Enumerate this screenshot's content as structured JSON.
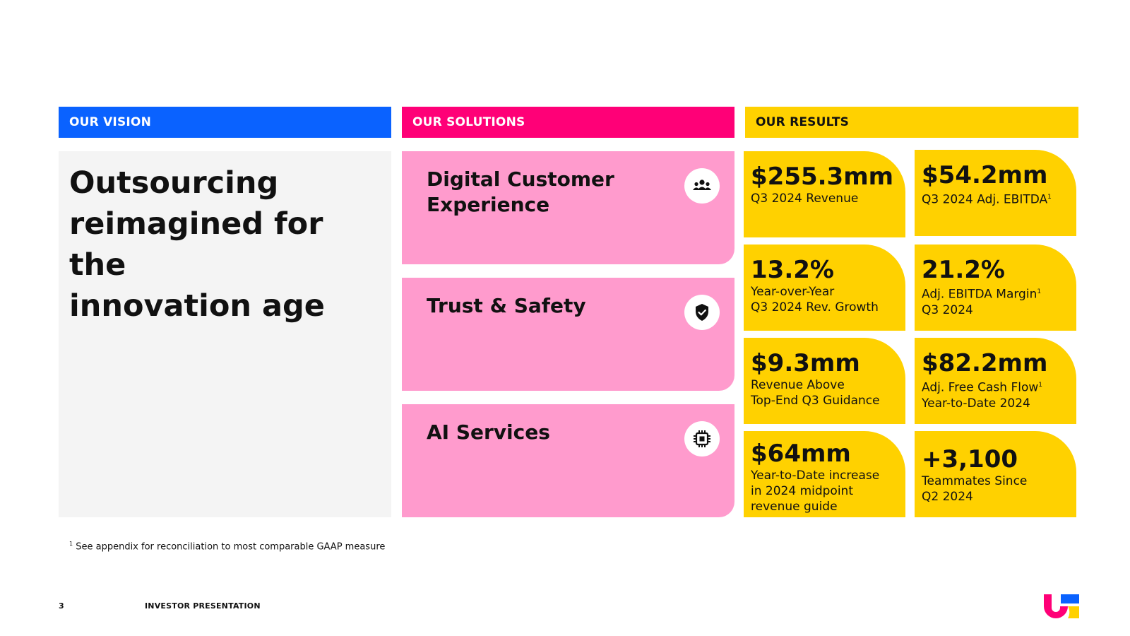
{
  "colors": {
    "blue": "#0a62ff",
    "magenta": "#ff0077",
    "pink": "#ff9bcd",
    "yellow": "#ffd100",
    "panel_gray": "#f4f4f4"
  },
  "vision": {
    "header": "OUR VISION",
    "lines": [
      "Outsourcing",
      "reimagined for the",
      "innovation age"
    ]
  },
  "solutions": {
    "header": "OUR SOLUTIONS",
    "items": [
      {
        "title_lines": [
          "Digital Customer",
          "Experience"
        ],
        "icon": "people-group-icon"
      },
      {
        "title_lines": [
          "Trust & Safety"
        ],
        "icon": "shield-check-icon"
      },
      {
        "title_lines": [
          "AI Services"
        ],
        "icon": "chip-icon"
      }
    ]
  },
  "results": {
    "header": "OUR RESULTS",
    "tiles": [
      {
        "value": "$255.3mm",
        "label_lines": [
          "Q3 2024 Revenue"
        ]
      },
      {
        "value": "$54.2mm",
        "label_lines": [
          "Q3 2024 Adj. EBITDA"
        ],
        "sup": "1"
      },
      {
        "value": "13.2%",
        "label_lines": [
          "Year-over-Year",
          "Q3 2024 Rev. Growth"
        ]
      },
      {
        "value": "21.2%",
        "label_lines": [
          "Adj. EBITDA Margin",
          "Q3 2024"
        ],
        "sup": "1"
      },
      {
        "value": "$9.3mm",
        "label_lines": [
          "Revenue Above",
          "Top-End Q3 Guidance"
        ]
      },
      {
        "value": "$82.2mm",
        "label_lines": [
          "Adj. Free Cash Flow",
          "Year-to-Date 2024"
        ],
        "sup": "1"
      },
      {
        "value": "$64mm",
        "label_lines": [
          "Year-to-Date increase",
          "in 2024 midpoint",
          "revenue guide"
        ]
      },
      {
        "value": "+3,100",
        "label_lines": [
          "Teammates Since",
          "Q2 2024"
        ]
      }
    ]
  },
  "footnote": {
    "mark": "1",
    "text": " See appendix for reconciliation to most comparable GAAP measure"
  },
  "footer": {
    "page_number": "3",
    "label": "INVESTOR PRESENTATION",
    "logo_icon": "brand-logo-icon"
  }
}
